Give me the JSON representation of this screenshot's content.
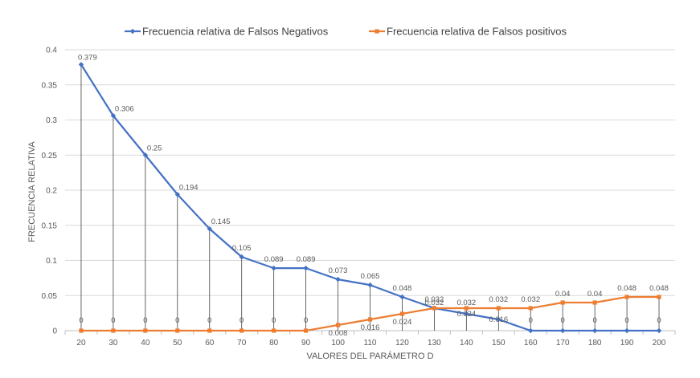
{
  "chart_data": {
    "type": "line",
    "title": "",
    "xlabel": "VALORES DEL PARÁMETRO D",
    "ylabel": "FRECUENCIA RELATIVA",
    "x": [
      20,
      30,
      40,
      50,
      60,
      70,
      80,
      90,
      100,
      110,
      120,
      130,
      140,
      150,
      160,
      170,
      180,
      190,
      200
    ],
    "ylim": [
      0,
      0.4
    ],
    "yticks": [
      "0",
      "0.05",
      "0.1",
      "0.15",
      "0.2",
      "0.25",
      "0.3",
      "0.35",
      "0.4"
    ],
    "grid": true,
    "legend_position": "top",
    "drop_lines": true,
    "series": [
      {
        "name": "Frecuencia relativa de Falsos Negativos",
        "color": "#4472C4",
        "marker": "diamond",
        "values": [
          0.379,
          0.306,
          0.25,
          0.194,
          0.145,
          0.105,
          0.089,
          0.089,
          0.073,
          0.065,
          0.048,
          0.032,
          0.024,
          0.016,
          0,
          0,
          0,
          0,
          0
        ],
        "labels": [
          "0.379",
          "0.306",
          "0.25",
          "0.194",
          "0.145",
          "0.105",
          "0.089",
          "0.089",
          "0.073",
          "0.065",
          "0.048",
          "0.032",
          "0.024",
          "0.016",
          "0",
          "0",
          "0",
          "0",
          "0"
        ]
      },
      {
        "name": "Frecuencia relativa de Falsos positivos",
        "color": "#ED7D31",
        "marker": "square",
        "values": [
          0,
          0,
          0,
          0,
          0,
          0,
          0,
          0,
          0.008,
          0.016,
          0.024,
          0.032,
          0.032,
          0.032,
          0.032,
          0.04,
          0.04,
          0.048,
          0.048
        ],
        "labels": [
          "0",
          "0",
          "0",
          "0",
          "0",
          "0",
          "0",
          "0",
          "0.008",
          "0.016",
          "0.024",
          "0.032",
          "0.032",
          "0.032",
          "0.032",
          "0.04",
          "0.04",
          "0.048",
          "0.048"
        ]
      }
    ]
  }
}
